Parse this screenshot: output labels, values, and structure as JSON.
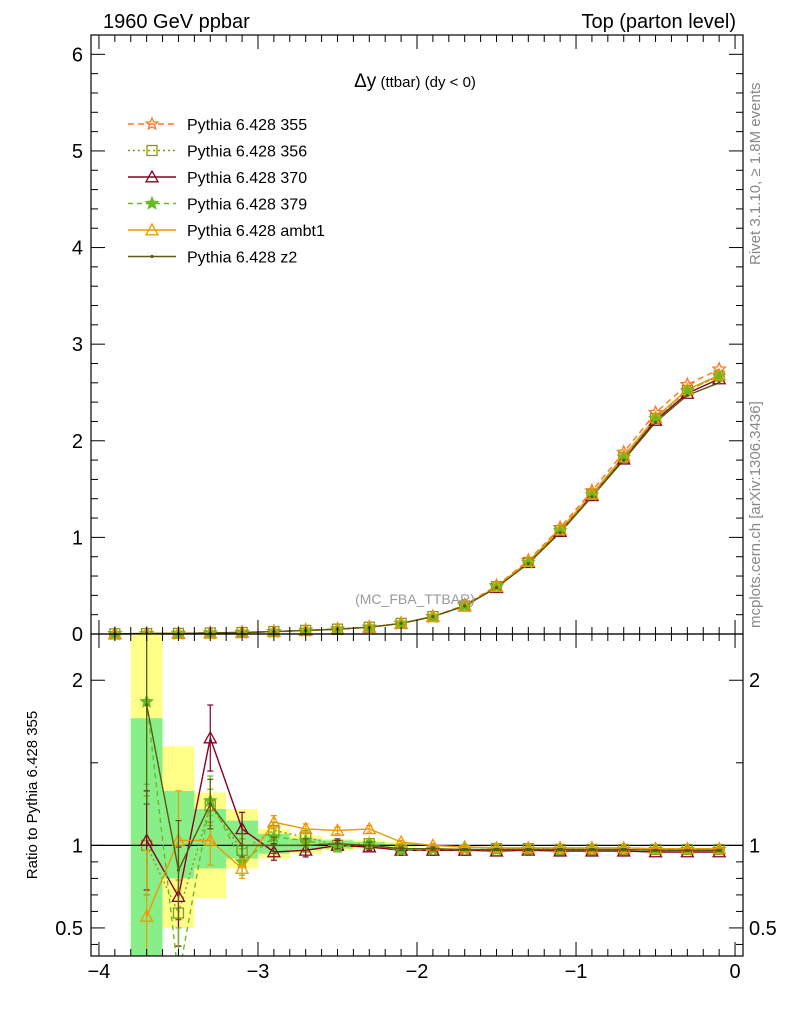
{
  "header": {
    "left": "1960 GeV ppbar",
    "right": "Top (parton level)"
  },
  "side": {
    "rivet": "Rivet 3.1.10, ≥ 1.8M events",
    "mcplots": "mcplots.cern.ch [arXiv:1306.3436]"
  },
  "watermark": "(MC_FBA_TTBAR)",
  "chart_data": [
    {
      "type": "line",
      "title_symbol": "Δy",
      "title_rest": " (ttbar) (dy < 0)",
      "xlim": [
        -4.05,
        0.05
      ],
      "ylim": [
        0,
        6.2
      ],
      "yticks": [
        0,
        1,
        2,
        3,
        4,
        5,
        6
      ],
      "grid": false,
      "legend_position": "top-left",
      "x": [
        -3.9,
        -3.7,
        -3.5,
        -3.3,
        -3.1,
        -2.9,
        -2.7,
        -2.5,
        -2.3,
        -2.1,
        -1.9,
        -1.7,
        -1.5,
        -1.3,
        -1.1,
        -0.9,
        -0.7,
        -0.5,
        -0.3,
        -0.1
      ],
      "series": [
        {
          "name": "Pythia 6.428 355",
          "color": "#ff7722",
          "dash": "6,4",
          "marker": "star-open",
          "values": [
            0.002,
            0.004,
            0.006,
            0.01,
            0.016,
            0.025,
            0.037,
            0.05,
            0.07,
            0.11,
            0.18,
            0.3,
            0.5,
            0.76,
            1.1,
            1.48,
            1.88,
            2.29,
            2.58,
            2.74
          ]
        },
        {
          "name": "Pythia 6.428 356",
          "color": "#8a9a10",
          "dash": "2,3",
          "marker": "square-open",
          "values": [
            0.002,
            0.004,
            0.006,
            0.01,
            0.016,
            0.025,
            0.037,
            0.05,
            0.07,
            0.11,
            0.18,
            0.29,
            0.49,
            0.74,
            1.07,
            1.44,
            1.83,
            2.23,
            2.52,
            2.67
          ]
        },
        {
          "name": "Pythia 6.428 370",
          "color": "#880022",
          "dash": "",
          "marker": "triangle-open",
          "values": [
            0.002,
            0.004,
            0.006,
            0.01,
            0.016,
            0.025,
            0.037,
            0.05,
            0.07,
            0.11,
            0.18,
            0.29,
            0.48,
            0.74,
            1.06,
            1.43,
            1.81,
            2.21,
            2.49,
            2.64
          ]
        },
        {
          "name": "Pythia 6.428 379",
          "color": "#66bb22",
          "dash": "5,4",
          "marker": "star-filled",
          "values": [
            0.002,
            0.004,
            0.006,
            0.01,
            0.016,
            0.025,
            0.037,
            0.05,
            0.07,
            0.11,
            0.18,
            0.29,
            0.49,
            0.74,
            1.07,
            1.44,
            1.83,
            2.23,
            2.52,
            2.67
          ]
        },
        {
          "name": "Pythia 6.428 ambt1",
          "color": "#ee9900",
          "dash": "",
          "marker": "triangle-open",
          "values": [
            0.002,
            0.004,
            0.006,
            0.01,
            0.016,
            0.025,
            0.037,
            0.05,
            0.07,
            0.11,
            0.18,
            0.29,
            0.49,
            0.75,
            1.08,
            1.45,
            1.84,
            2.24,
            2.53,
            2.68
          ]
        },
        {
          "name": "Pythia 6.428 z2",
          "color": "#5a5a10",
          "dash": "",
          "marker": "dot",
          "values": [
            0.002,
            0.004,
            0.006,
            0.01,
            0.016,
            0.025,
            0.037,
            0.05,
            0.07,
            0.11,
            0.18,
            0.29,
            0.48,
            0.73,
            1.05,
            1.42,
            1.8,
            2.19,
            2.47,
            2.6
          ]
        }
      ]
    },
    {
      "type": "line",
      "ylabel": "Ratio to Pythia 6.428 355",
      "xlim": [
        -4.05,
        0.05
      ],
      "ylim": [
        0.33,
        2.28
      ],
      "yticks": [
        0.5,
        1,
        2
      ],
      "ytick_labels": [
        "0.5",
        "1",
        "2"
      ],
      "xticks": [
        -4,
        -3,
        -2,
        -1,
        0
      ],
      "xtick_labels": [
        "−4",
        "−3",
        "−2",
        "−1",
        "0"
      ],
      "reference_line": 1,
      "bands": {
        "edges": [
          -3.8,
          -3.6,
          -3.4,
          -3.2,
          -3.0,
          -2.8,
          -2.6,
          -2.4,
          -2.2,
          -2.0
        ],
        "yellow_lo": [
          0.33,
          0.5,
          0.68,
          0.86,
          0.92,
          0.95,
          0.97,
          0.98,
          0.99
        ],
        "yellow_hi": [
          2.28,
          1.6,
          1.32,
          1.22,
          1.1,
          1.06,
          1.04,
          1.03,
          1.02
        ],
        "green_lo": [
          0.33,
          0.8,
          0.86,
          0.92,
          0.95,
          0.97,
          0.98,
          0.99,
          0.995
        ],
        "green_hi": [
          1.77,
          1.33,
          1.22,
          1.15,
          1.07,
          1.04,
          1.03,
          1.02,
          1.01
        ]
      },
      "x": [
        -3.7,
        -3.5,
        -3.3,
        -3.1,
        -2.9,
        -2.7,
        -2.5,
        -2.3,
        -2.1,
        -1.9,
        -1.7,
        -1.5,
        -1.3,
        -1.1,
        -0.9,
        -0.7,
        -0.5,
        -0.3,
        -0.1
      ],
      "series": [
        {
          "name": "Pythia 6.428 356",
          "color": "#8a9a10",
          "dash": "2,3",
          "marker": "square-open",
          "values": [
            1.0,
            0.59,
            1.24,
            0.97,
            1.09,
            1.05,
            1.0,
            1.01,
            0.97,
            0.97,
            0.97,
            0.98,
            0.98,
            0.975,
            0.975,
            0.975,
            0.975,
            0.975,
            0.975
          ],
          "errors": [
            0.3,
            0.2,
            0.1,
            0.07,
            0.05,
            0.04,
            0.03,
            0.02,
            0.01,
            0.01,
            0.005,
            0.005,
            0.005,
            0.005,
            0.005,
            0.005,
            0.005,
            0.005,
            0.005
          ]
        },
        {
          "name": "Pythia 6.428 370",
          "color": "#880022",
          "dash": "",
          "marker": "triangle-open",
          "values": [
            1.03,
            0.69,
            1.65,
            1.1,
            0.96,
            0.97,
            1.0,
            0.99,
            0.97,
            0.97,
            0.97,
            0.965,
            0.97,
            0.965,
            0.965,
            0.965,
            0.96,
            0.96,
            0.96
          ],
          "errors": [
            0.3,
            0.3,
            0.2,
            0.1,
            0.05,
            0.04,
            0.03,
            0.02,
            0.01,
            0.01,
            0.005,
            0.005,
            0.005,
            0.005,
            0.005,
            0.005,
            0.005,
            0.005,
            0.005
          ]
        },
        {
          "name": "Pythia 6.428 379",
          "color": "#66bb22",
          "dash": "5,4",
          "marker": "star-filled",
          "values": [
            1.87,
            0.2,
            1.27,
            0.9,
            1.05,
            1.03,
            0.99,
            1.01,
            0.97,
            0.975,
            0.975,
            0.975,
            0.975,
            0.975,
            0.975,
            0.975,
            0.975,
            0.975,
            0.975
          ],
          "errors": [
            0.5,
            0.3,
            0.15,
            0.08,
            0.05,
            0.04,
            0.03,
            0.02,
            0.01,
            0.01,
            0.005,
            0.005,
            0.005,
            0.005,
            0.005,
            0.005,
            0.005,
            0.005,
            0.005
          ]
        },
        {
          "name": "Pythia 6.428 ambt1",
          "color": "#ee9900",
          "dash": "",
          "marker": "triangle-open",
          "values": [
            0.57,
            1.03,
            1.03,
            0.86,
            1.14,
            1.1,
            1.09,
            1.1,
            1.02,
            1.0,
            0.99,
            0.985,
            0.985,
            0.985,
            0.985,
            0.985,
            0.98,
            0.98,
            0.98
          ],
          "errors": [
            0.4,
            0.3,
            0.15,
            0.06,
            0.04,
            0.03,
            0.02,
            0.02,
            0.01,
            0.01,
            0.005,
            0.005,
            0.005,
            0.005,
            0.005,
            0.005,
            0.005,
            0.005,
            0.005
          ]
        },
        {
          "name": "Pythia 6.428 z2",
          "color": "#5a5a10",
          "dash": "",
          "marker": "dot",
          "values": [
            1.85,
            0.85,
            1.25,
            1.0,
            1.0,
            1.0,
            1.01,
            1.0,
            0.98,
            0.98,
            0.975,
            0.975,
            0.975,
            0.975,
            0.975,
            0.975,
            0.97,
            0.97,
            0.97
          ],
          "errors": [
            0.6,
            0.3,
            0.15,
            0.07,
            0.05,
            0.04,
            0.03,
            0.02,
            0.01,
            0.01,
            0.005,
            0.005,
            0.005,
            0.005,
            0.005,
            0.005,
            0.005,
            0.005,
            0.005
          ]
        }
      ]
    }
  ]
}
